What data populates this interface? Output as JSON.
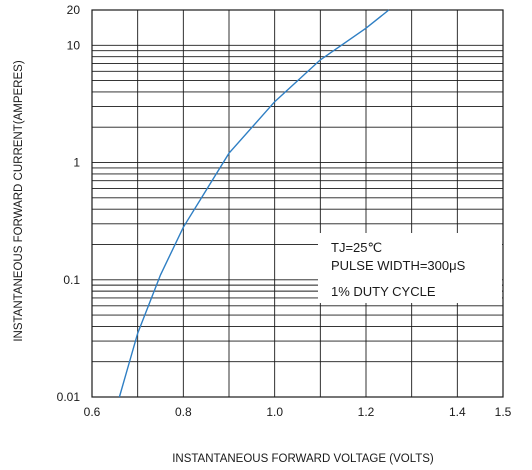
{
  "chart_data": {
    "type": "line",
    "x_scale": "linear",
    "y_scale": "log",
    "xlim": [
      0.6,
      1.5
    ],
    "ylim": [
      0.01,
      20
    ],
    "grid": true,
    "xlabel": "INSTANTANEOUS FORWARD VOLTAGE (VOLTS)",
    "ylabel": "INSTANTANEOUS FORWARD CURRENT(AMPERES)",
    "x_ticks": [
      {
        "value": 0.6,
        "label": "0.6"
      },
      {
        "value": 0.8,
        "label": "0.8"
      },
      {
        "value": 1.0,
        "label": "1.0"
      },
      {
        "value": 1.2,
        "label": "1.2"
      },
      {
        "value": 1.4,
        "label": "1.4"
      },
      {
        "value": 1.5,
        "label": "1.5"
      }
    ],
    "y_ticks": [
      {
        "value": 0.01,
        "label": "0.01"
      },
      {
        "value": 0.1,
        "label": "0.1"
      },
      {
        "value": 1,
        "label": "1"
      },
      {
        "value": 10,
        "label": "10"
      },
      {
        "value": 20,
        "label": "20"
      }
    ],
    "annotation": [
      "TJ=25℃",
      "PULSE WIDTH=300μS",
      "1% DUTY CYCLE"
    ],
    "series": [
      {
        "color": "#2f7fc4",
        "x": [
          0.66,
          0.7,
          0.75,
          0.8,
          0.9,
          1.0,
          1.1,
          1.2,
          1.25
        ],
        "y": [
          0.01,
          0.035,
          0.11,
          0.28,
          1.2,
          3.3,
          7.5,
          14,
          20
        ]
      }
    ]
  }
}
